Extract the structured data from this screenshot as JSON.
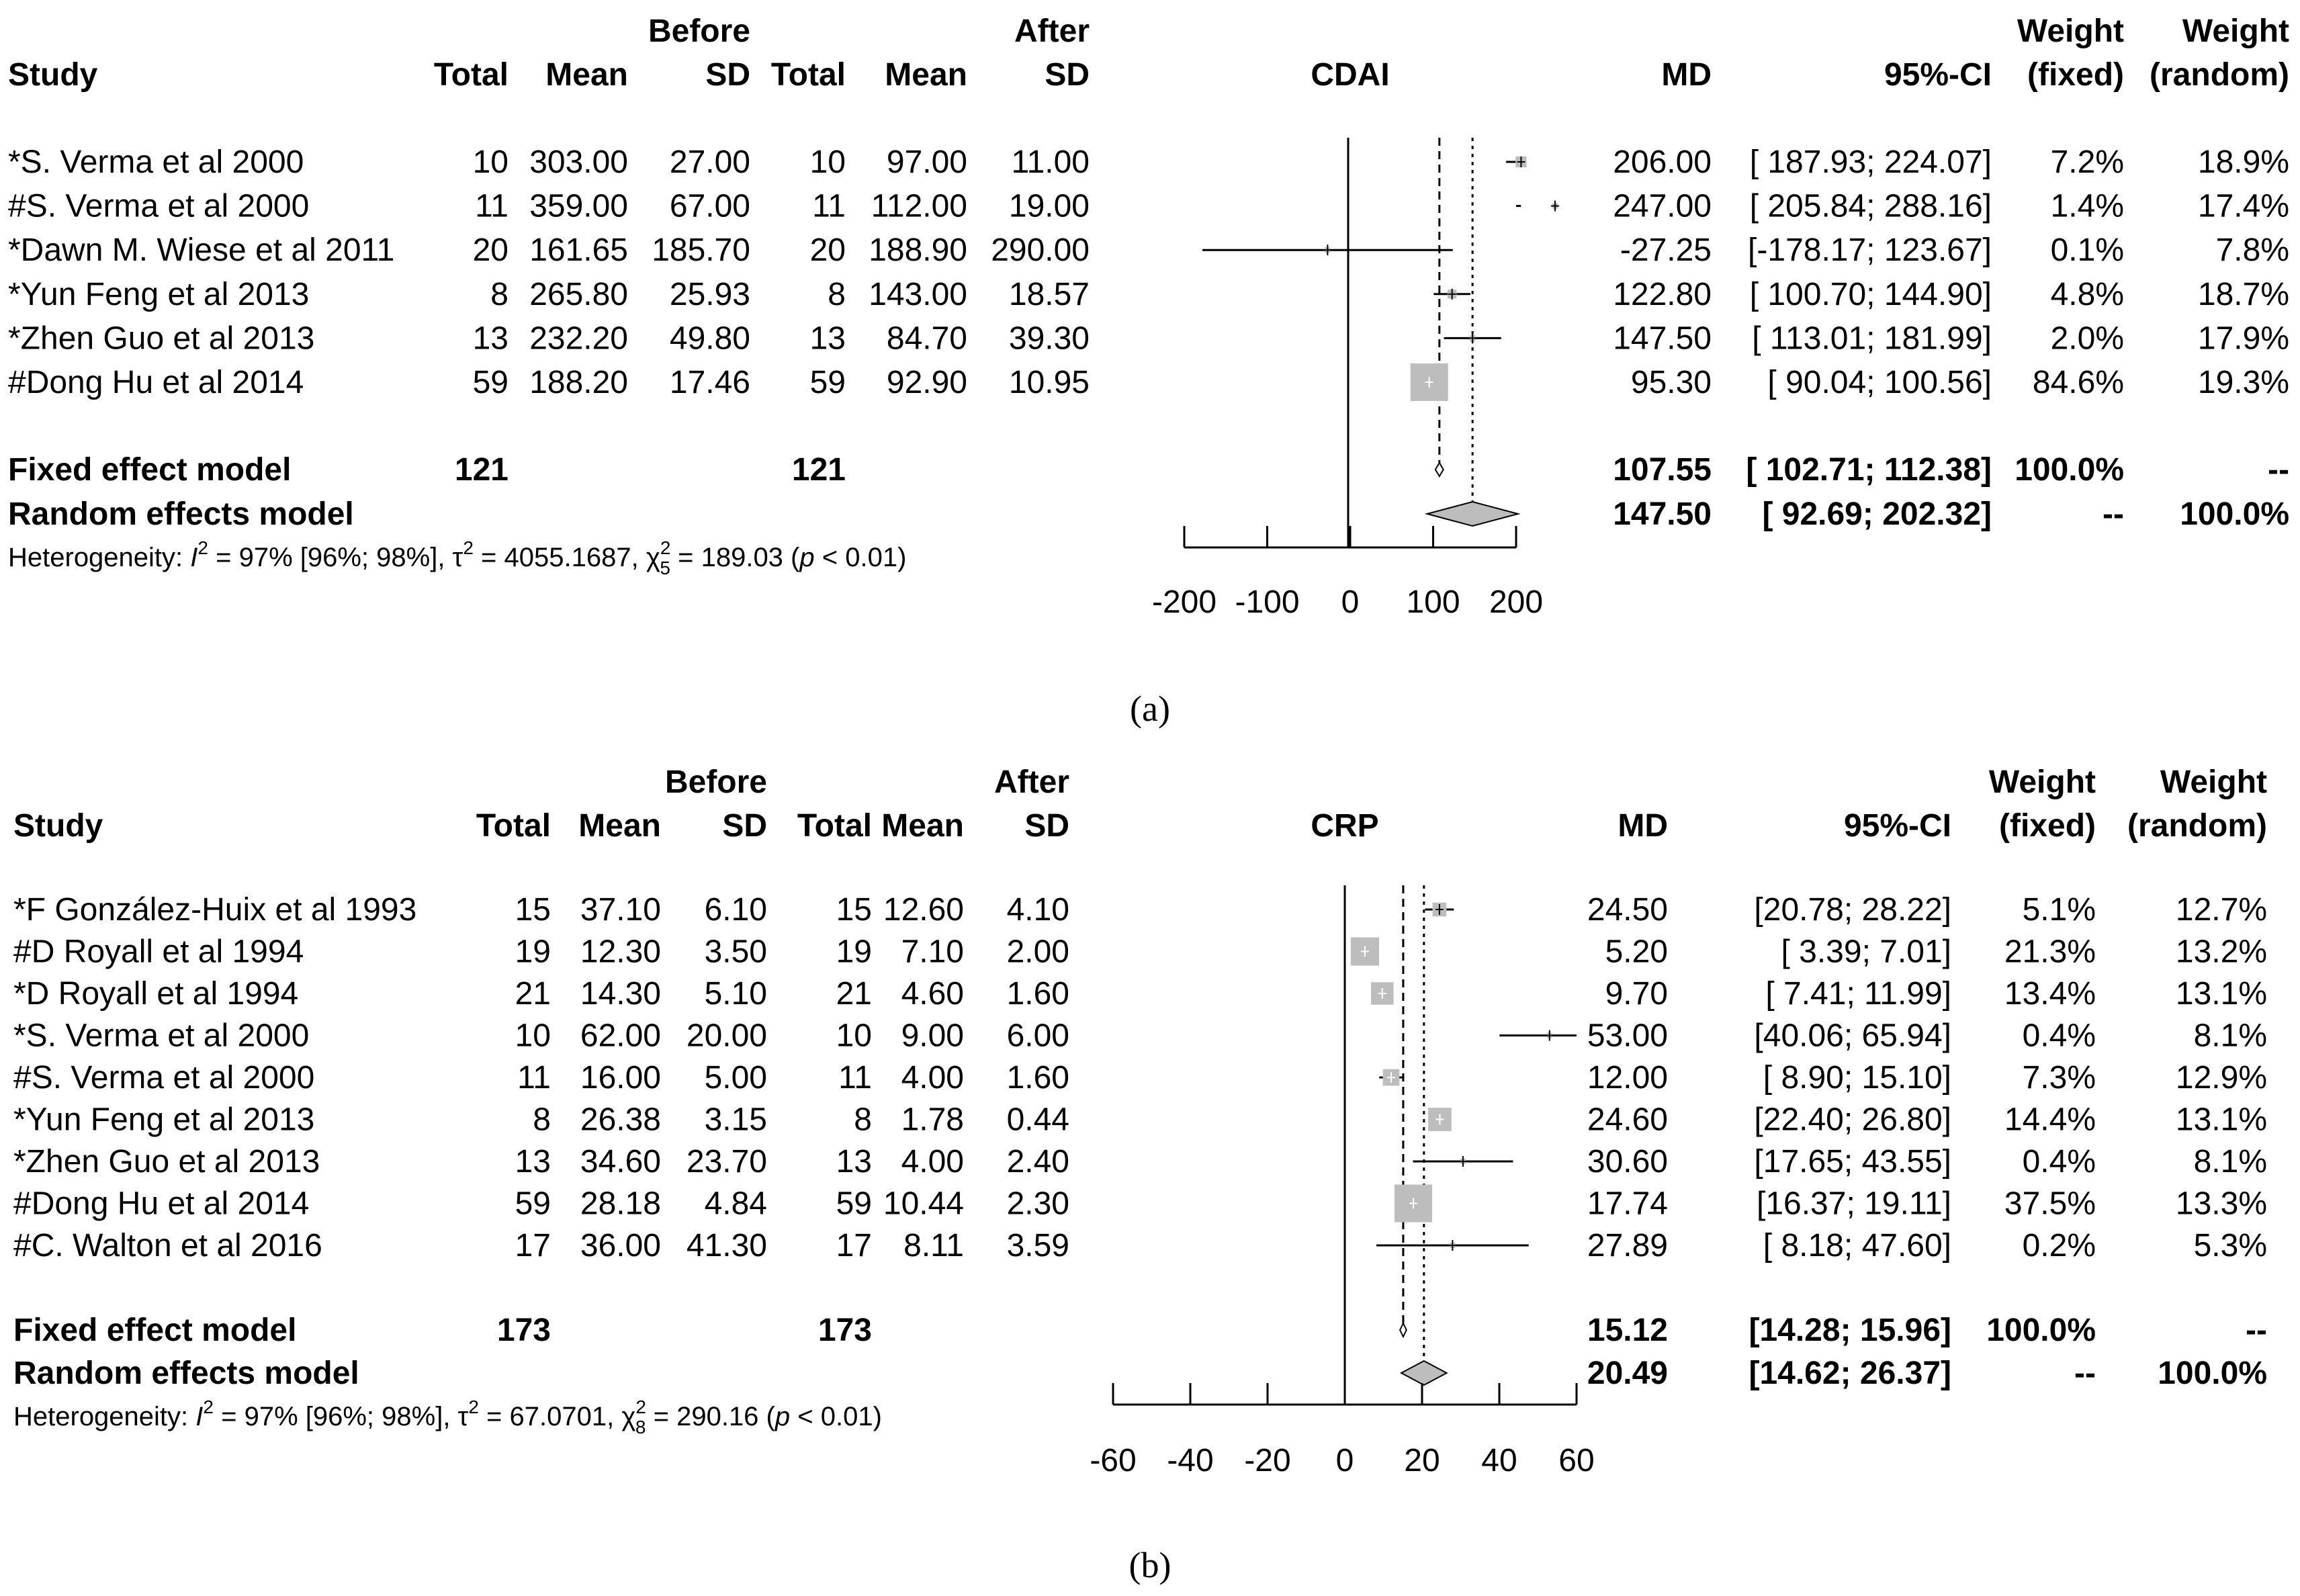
{
  "chart_data": [
    {
      "type": "forest",
      "caption": "(a)",
      "outcome": "CDAI",
      "headers": {
        "study": "Study",
        "group_before": "Before",
        "group_after": "After",
        "total": "Total",
        "mean": "Mean",
        "sd": "SD",
        "md": "MD",
        "ci": "95%-CI",
        "weight": "Weight",
        "fixed": "(fixed)",
        "random": "(random)"
      },
      "studies": [
        {
          "name": "*S. Verma et al 2000",
          "before_total": "10",
          "before_mean": "303.00",
          "before_sd": "27.00",
          "after_total": "10",
          "after_mean": "97.00",
          "after_sd": "11.00",
          "md_text": "206.00",
          "ci_text": "[ 187.93; 224.07]",
          "w_fixed": "7.2%",
          "w_random": "18.9%",
          "md": 206.0,
          "lo": 187.93,
          "hi": 224.07,
          "w": 7.2
        },
        {
          "name": "#S. Verma et al 2000",
          "before_total": "11",
          "before_mean": "359.00",
          "before_sd": "67.00",
          "after_total": "11",
          "after_mean": "112.00",
          "after_sd": "19.00",
          "md_text": "247.00",
          "ci_text": "[ 205.84; 288.16]",
          "w_fixed": "1.4%",
          "w_random": "17.4%",
          "md": 247.0,
          "lo": 205.84,
          "hi": 288.16,
          "w": 1.4
        },
        {
          "name": "*Dawn M. Wiese et al 2011",
          "before_total": "20",
          "before_mean": "161.65",
          "before_sd": "185.70",
          "after_total": "20",
          "after_mean": "188.90",
          "after_sd": "290.00",
          "md_text": "-27.25",
          "ci_text": "[-178.17; 123.67]",
          "w_fixed": "0.1%",
          "w_random": "7.8%",
          "md": -27.25,
          "lo": -178.17,
          "hi": 123.67,
          "w": 0.1
        },
        {
          "name": "*Yun Feng et al 2013",
          "before_total": "8",
          "before_mean": "265.80",
          "before_sd": "25.93",
          "after_total": "8",
          "after_mean": "143.00",
          "after_sd": "18.57",
          "md_text": "122.80",
          "ci_text": "[ 100.70; 144.90]",
          "w_fixed": "4.8%",
          "w_random": "18.7%",
          "md": 122.8,
          "lo": 100.7,
          "hi": 144.9,
          "w": 4.8
        },
        {
          "name": "*Zhen Guo et al 2013",
          "before_total": "13",
          "before_mean": "232.20",
          "before_sd": "49.80",
          "after_total": "13",
          "after_mean": "84.70",
          "after_sd": "39.30",
          "md_text": "147.50",
          "ci_text": "[ 113.01; 181.99]",
          "w_fixed": "2.0%",
          "w_random": "17.9%",
          "md": 147.5,
          "lo": 113.01,
          "hi": 181.99,
          "w": 2.0
        },
        {
          "name": "#Dong Hu et al 2014",
          "before_total": "59",
          "before_mean": "188.20",
          "before_sd": "17.46",
          "after_total": "59",
          "after_mean": "92.90",
          "after_sd": "10.95",
          "md_text": "95.30",
          "ci_text": "[  90.04; 100.56]",
          "w_fixed": "84.6%",
          "w_random": "19.3%",
          "md": 95.3,
          "lo": 90.04,
          "hi": 100.56,
          "w": 84.6
        }
      ],
      "fixed": {
        "label": "Fixed effect model",
        "before_total": "121",
        "after_total": "121",
        "md_text": "107.55",
        "ci_text": "[ 102.71; 112.38]",
        "w_fixed": "100.0%",
        "w_random": "--",
        "md": 107.55,
        "lo": 102.71,
        "hi": 112.38
      },
      "random": {
        "label": "Random effects model",
        "md_text": "147.50",
        "ci_text": "[  92.69; 202.32]",
        "w_fixed": "--",
        "w_random": "100.0%",
        "md": 147.5,
        "lo": 92.69,
        "hi": 202.32
      },
      "heterogeneity": {
        "prefix": "Heterogeneity: ",
        "i2_symbol": "I",
        "i2_sup": "2",
        "i2_value": " = 97% [96%; 98%], ",
        "tau_symbol": "τ",
        "tau_sup": "2",
        "tau_value": " = 4055.1687, ",
        "chi_symbol": "χ",
        "chi_sup": "2",
        "chi_sub": "5",
        "chi_value": " = 189.03 (",
        "p_symbol": "p",
        "p_value": " < 0.01)"
      },
      "xlim": [
        -200,
        200
      ],
      "ticks": [
        -200,
        -100,
        0,
        100,
        200
      ],
      "tick_labels": [
        "-200",
        "-100",
        "0",
        "100",
        "200"
      ]
    },
    {
      "type": "forest",
      "caption": "(b)",
      "outcome": "CRP",
      "headers": {
        "study": "Study",
        "group_before": "Before",
        "group_after": "After",
        "total": "Total",
        "mean": "Mean",
        "sd": "SD",
        "md": "MD",
        "ci": "95%-CI",
        "weight": "Weight",
        "fixed": "(fixed)",
        "random": "(random)"
      },
      "studies": [
        {
          "name": "*F González-Huix et al 1993",
          "before_total": "15",
          "before_mean": "37.10",
          "before_sd": "6.10",
          "after_total": "15",
          "after_mean": "12.60",
          "after_sd": "4.10",
          "md_text": "24.50",
          "ci_text": "[20.78; 28.22]",
          "w_fixed": "5.1%",
          "w_random": "12.7%",
          "md": 24.5,
          "lo": 20.78,
          "hi": 28.22,
          "w": 5.1
        },
        {
          "name": "#D Royall et al 1994",
          "before_total": "19",
          "before_mean": "12.30",
          "before_sd": "3.50",
          "after_total": "19",
          "after_mean": "7.10",
          "after_sd": "2.00",
          "md_text": "5.20",
          "ci_text": "[ 3.39;  7.01]",
          "w_fixed": "21.3%",
          "w_random": "13.2%",
          "md": 5.2,
          "lo": 3.39,
          "hi": 7.01,
          "w": 21.3
        },
        {
          "name": "*D Royall et al 1994",
          "before_total": "21",
          "before_mean": "14.30",
          "before_sd": "5.10",
          "after_total": "21",
          "after_mean": "4.60",
          "after_sd": "1.60",
          "md_text": "9.70",
          "ci_text": "[ 7.41; 11.99]",
          "w_fixed": "13.4%",
          "w_random": "13.1%",
          "md": 9.7,
          "lo": 7.41,
          "hi": 11.99,
          "w": 13.4
        },
        {
          "name": "*S. Verma et al 2000",
          "before_total": "10",
          "before_mean": "62.00",
          "before_sd": "20.00",
          "after_total": "10",
          "after_mean": "9.00",
          "after_sd": "6.00",
          "md_text": "53.00",
          "ci_text": "[40.06; 65.94]",
          "w_fixed": "0.4%",
          "w_random": "8.1%",
          "md": 53.0,
          "lo": 40.06,
          "hi": 65.94,
          "w": 0.4
        },
        {
          "name": "#S. Verma et al 2000",
          "before_total": "11",
          "before_mean": "16.00",
          "before_sd": "5.00",
          "after_total": "11",
          "after_mean": "4.00",
          "after_sd": "1.60",
          "md_text": "12.00",
          "ci_text": "[ 8.90; 15.10]",
          "w_fixed": "7.3%",
          "w_random": "12.9%",
          "md": 12.0,
          "lo": 8.9,
          "hi": 15.1,
          "w": 7.3
        },
        {
          "name": "*Yun Feng et al 2013",
          "before_total": "8",
          "before_mean": "26.38",
          "before_sd": "3.15",
          "after_total": "8",
          "after_mean": "1.78",
          "after_sd": "0.44",
          "md_text": "24.60",
          "ci_text": "[22.40; 26.80]",
          "w_fixed": "14.4%",
          "w_random": "13.1%",
          "md": 24.6,
          "lo": 22.4,
          "hi": 26.8,
          "w": 14.4
        },
        {
          "name": "*Zhen Guo et al 2013",
          "before_total": "13",
          "before_mean": "34.60",
          "before_sd": "23.70",
          "after_total": "13",
          "after_mean": "4.00",
          "after_sd": "2.40",
          "md_text": "30.60",
          "ci_text": "[17.65; 43.55]",
          "w_fixed": "0.4%",
          "w_random": "8.1%",
          "md": 30.6,
          "lo": 17.65,
          "hi": 43.55,
          "w": 0.4
        },
        {
          "name": "#Dong Hu et al 2014",
          "before_total": "59",
          "before_mean": "28.18",
          "before_sd": "4.84",
          "after_total": "59",
          "after_mean": "10.44",
          "after_sd": "2.30",
          "md_text": "17.74",
          "ci_text": "[16.37; 19.11]",
          "w_fixed": "37.5%",
          "w_random": "13.3%",
          "md": 17.74,
          "lo": 16.37,
          "hi": 19.11,
          "w": 37.5
        },
        {
          "name": "#C. Walton et al 2016",
          "before_total": "17",
          "before_mean": "36.00",
          "before_sd": "41.30",
          "after_total": "17",
          "after_mean": "8.11",
          "after_sd": "3.59",
          "md_text": "27.89",
          "ci_text": "[ 8.18; 47.60]",
          "w_fixed": "0.2%",
          "w_random": "5.3%",
          "md": 27.89,
          "lo": 8.18,
          "hi": 47.6,
          "w": 0.2
        }
      ],
      "fixed": {
        "label": "Fixed effect model",
        "before_total": "173",
        "after_total": "173",
        "md_text": "15.12",
        "ci_text": "[14.28; 15.96]",
        "w_fixed": "100.0%",
        "w_random": "--",
        "md": 15.12,
        "lo": 14.28,
        "hi": 15.96
      },
      "random": {
        "label": "Random effects model",
        "md_text": "20.49",
        "ci_text": "[14.62; 26.37]",
        "w_fixed": "--",
        "w_random": "100.0%",
        "md": 20.49,
        "lo": 14.62,
        "hi": 26.37
      },
      "heterogeneity": {
        "prefix": "Heterogeneity: ",
        "i2_symbol": "I",
        "i2_sup": "2",
        "i2_value": " = 97% [96%; 98%], ",
        "tau_symbol": "τ",
        "tau_sup": "2",
        "tau_value": " = 67.0701, ",
        "chi_symbol": "χ",
        "chi_sup": "2",
        "chi_sub": "8",
        "chi_value": " = 290.16 (",
        "p_symbol": "p",
        "p_value": " < 0.01)"
      },
      "xlim": [
        -60,
        60
      ],
      "ticks": [
        -60,
        -40,
        -20,
        0,
        20,
        40,
        60
      ],
      "tick_labels": [
        "-60",
        "-40",
        "-20",
        "0",
        "20",
        "40",
        "60"
      ]
    }
  ]
}
